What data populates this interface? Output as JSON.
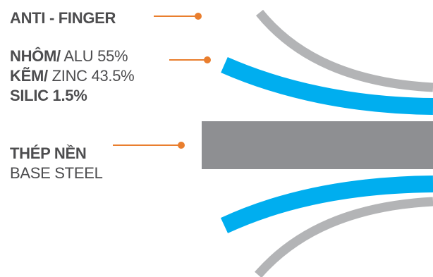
{
  "layers": {
    "anti_finger": {
      "label": "ANTI - FINGER"
    },
    "coating": {
      "lines": [
        {
          "bold": "NHÔM/",
          "normal": " ALU 55%"
        },
        {
          "bold": "KẼM/",
          "normal": " ZINC 43.5%"
        },
        {
          "bold": "SILIC 1.5%",
          "normal": ""
        }
      ]
    },
    "base_steel": {
      "label_vi": "THÉP NỀN",
      "label_en": "BASE STEEL"
    }
  },
  "colors": {
    "text": "#4d4d4f",
    "leader": "#e97e2e",
    "anti_finger_layer": "#b3b4b6",
    "coating_layer": "#00aeef",
    "steel_layer": "#8e8f92"
  }
}
